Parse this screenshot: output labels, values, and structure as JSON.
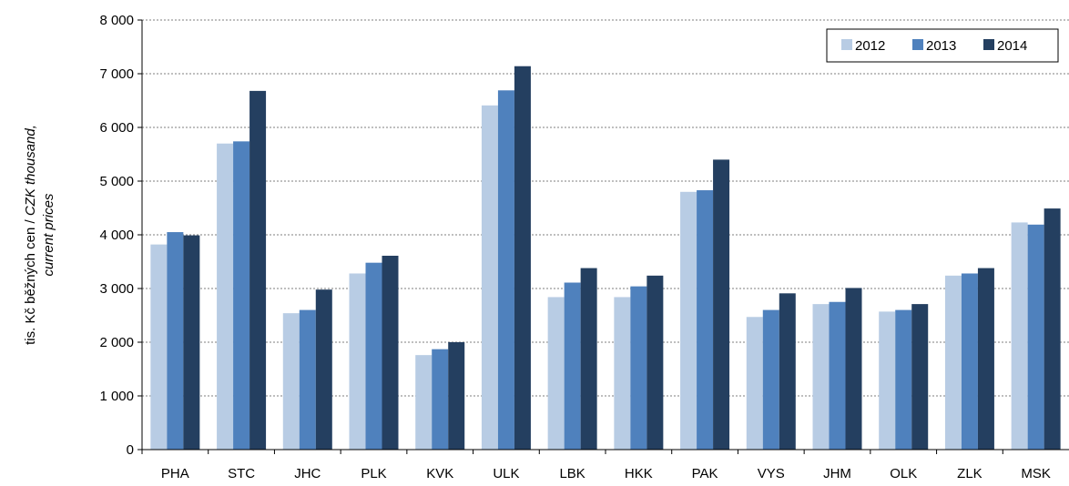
{
  "chart_data": {
    "type": "bar",
    "ylabel_main": "tis. Kč běžných cen / ",
    "ylabel_italic_1": "CZK thousand,",
    "ylabel_italic_2": "current prices",
    "ylim": [
      0,
      8000
    ],
    "yticks": [
      0,
      1000,
      2000,
      3000,
      4000,
      5000,
      6000,
      7000,
      8000
    ],
    "ytick_labels": [
      "0",
      "1 000",
      "2 000",
      "3 000",
      "4 000",
      "5 000",
      "6 000",
      "7 000",
      "8 000"
    ],
    "grid": "horizontal dotted",
    "legend_position": "top-right",
    "categories": [
      "PHA",
      "STC",
      "JHC",
      "PLK",
      "KVK",
      "ULK",
      "LBK",
      "HKK",
      "PAK",
      "VYS",
      "JHM",
      "OLK",
      "ZLK",
      "MSK"
    ],
    "series": [
      {
        "name": "2012",
        "color": "#b8cce4",
        "values": [
          3820,
          5700,
          2540,
          3280,
          1760,
          6410,
          2840,
          2840,
          4800,
          2470,
          2710,
          2570,
          3240,
          4230
        ]
      },
      {
        "name": "2013",
        "color": "#4f81bd",
        "values": [
          4050,
          5740,
          2600,
          3480,
          1870,
          6690,
          3110,
          3040,
          4830,
          2600,
          2750,
          2600,
          3280,
          4190
        ]
      },
      {
        "name": "2014",
        "color": "#243f60",
        "values": [
          3990,
          6680,
          2980,
          3610,
          2000,
          7140,
          3380,
          3240,
          5400,
          2910,
          3010,
          2710,
          3380,
          4490
        ]
      }
    ]
  }
}
